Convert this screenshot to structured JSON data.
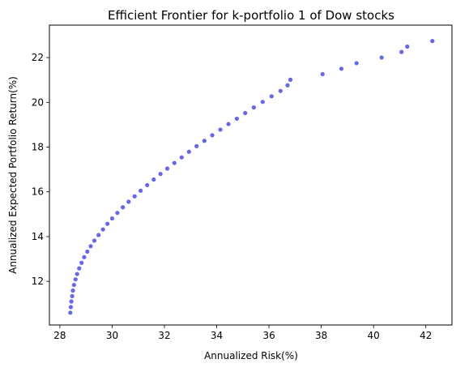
{
  "chart_data": {
    "type": "scatter",
    "title": "Efficient Frontier for k-portfolio 1 of Dow stocks",
    "xlabel": "Annualized Risk(%)",
    "ylabel": "Annualized Expected Portfolio Return(%)",
    "xlim": [
      27.6,
      43.0
    ],
    "ylim": [
      10.05,
      23.45
    ],
    "xticks": [
      28,
      30,
      32,
      34,
      36,
      38,
      40,
      42
    ],
    "yticks": [
      12,
      14,
      16,
      18,
      20,
      22
    ],
    "grid": false,
    "marker_color": "#6666ee",
    "series": [
      {
        "x": [
          28.4,
          28.42,
          28.44,
          28.47,
          28.5,
          28.54,
          28.6,
          28.66,
          28.74,
          28.83,
          28.93,
          29.05,
          29.18,
          29.32,
          29.48,
          29.65,
          29.82,
          30.0,
          30.2,
          30.41,
          30.63,
          30.86,
          31.09,
          31.34,
          31.59,
          31.85,
          32.11,
          32.38,
          32.66,
          32.94,
          33.23,
          33.53,
          33.83,
          34.14,
          34.45,
          34.77,
          35.09,
          35.42,
          35.76,
          36.1,
          36.44,
          36.71,
          36.82,
          38.05,
          38.77,
          39.35,
          40.31,
          41.07,
          41.29,
          42.25
        ],
        "y": [
          10.6,
          10.85,
          11.1,
          11.34,
          11.59,
          11.84,
          12.09,
          12.33,
          12.58,
          12.83,
          13.08,
          13.33,
          13.57,
          13.82,
          14.07,
          14.32,
          14.57,
          14.81,
          15.06,
          15.31,
          15.56,
          15.8,
          16.05,
          16.3,
          16.55,
          16.8,
          17.04,
          17.29,
          17.54,
          17.79,
          18.04,
          18.28,
          18.53,
          18.78,
          19.03,
          19.27,
          19.52,
          19.77,
          20.02,
          20.27,
          20.51,
          20.76,
          21.01,
          21.26,
          21.5,
          21.75,
          22.0,
          22.25,
          22.49,
          22.74
        ]
      }
    ]
  }
}
